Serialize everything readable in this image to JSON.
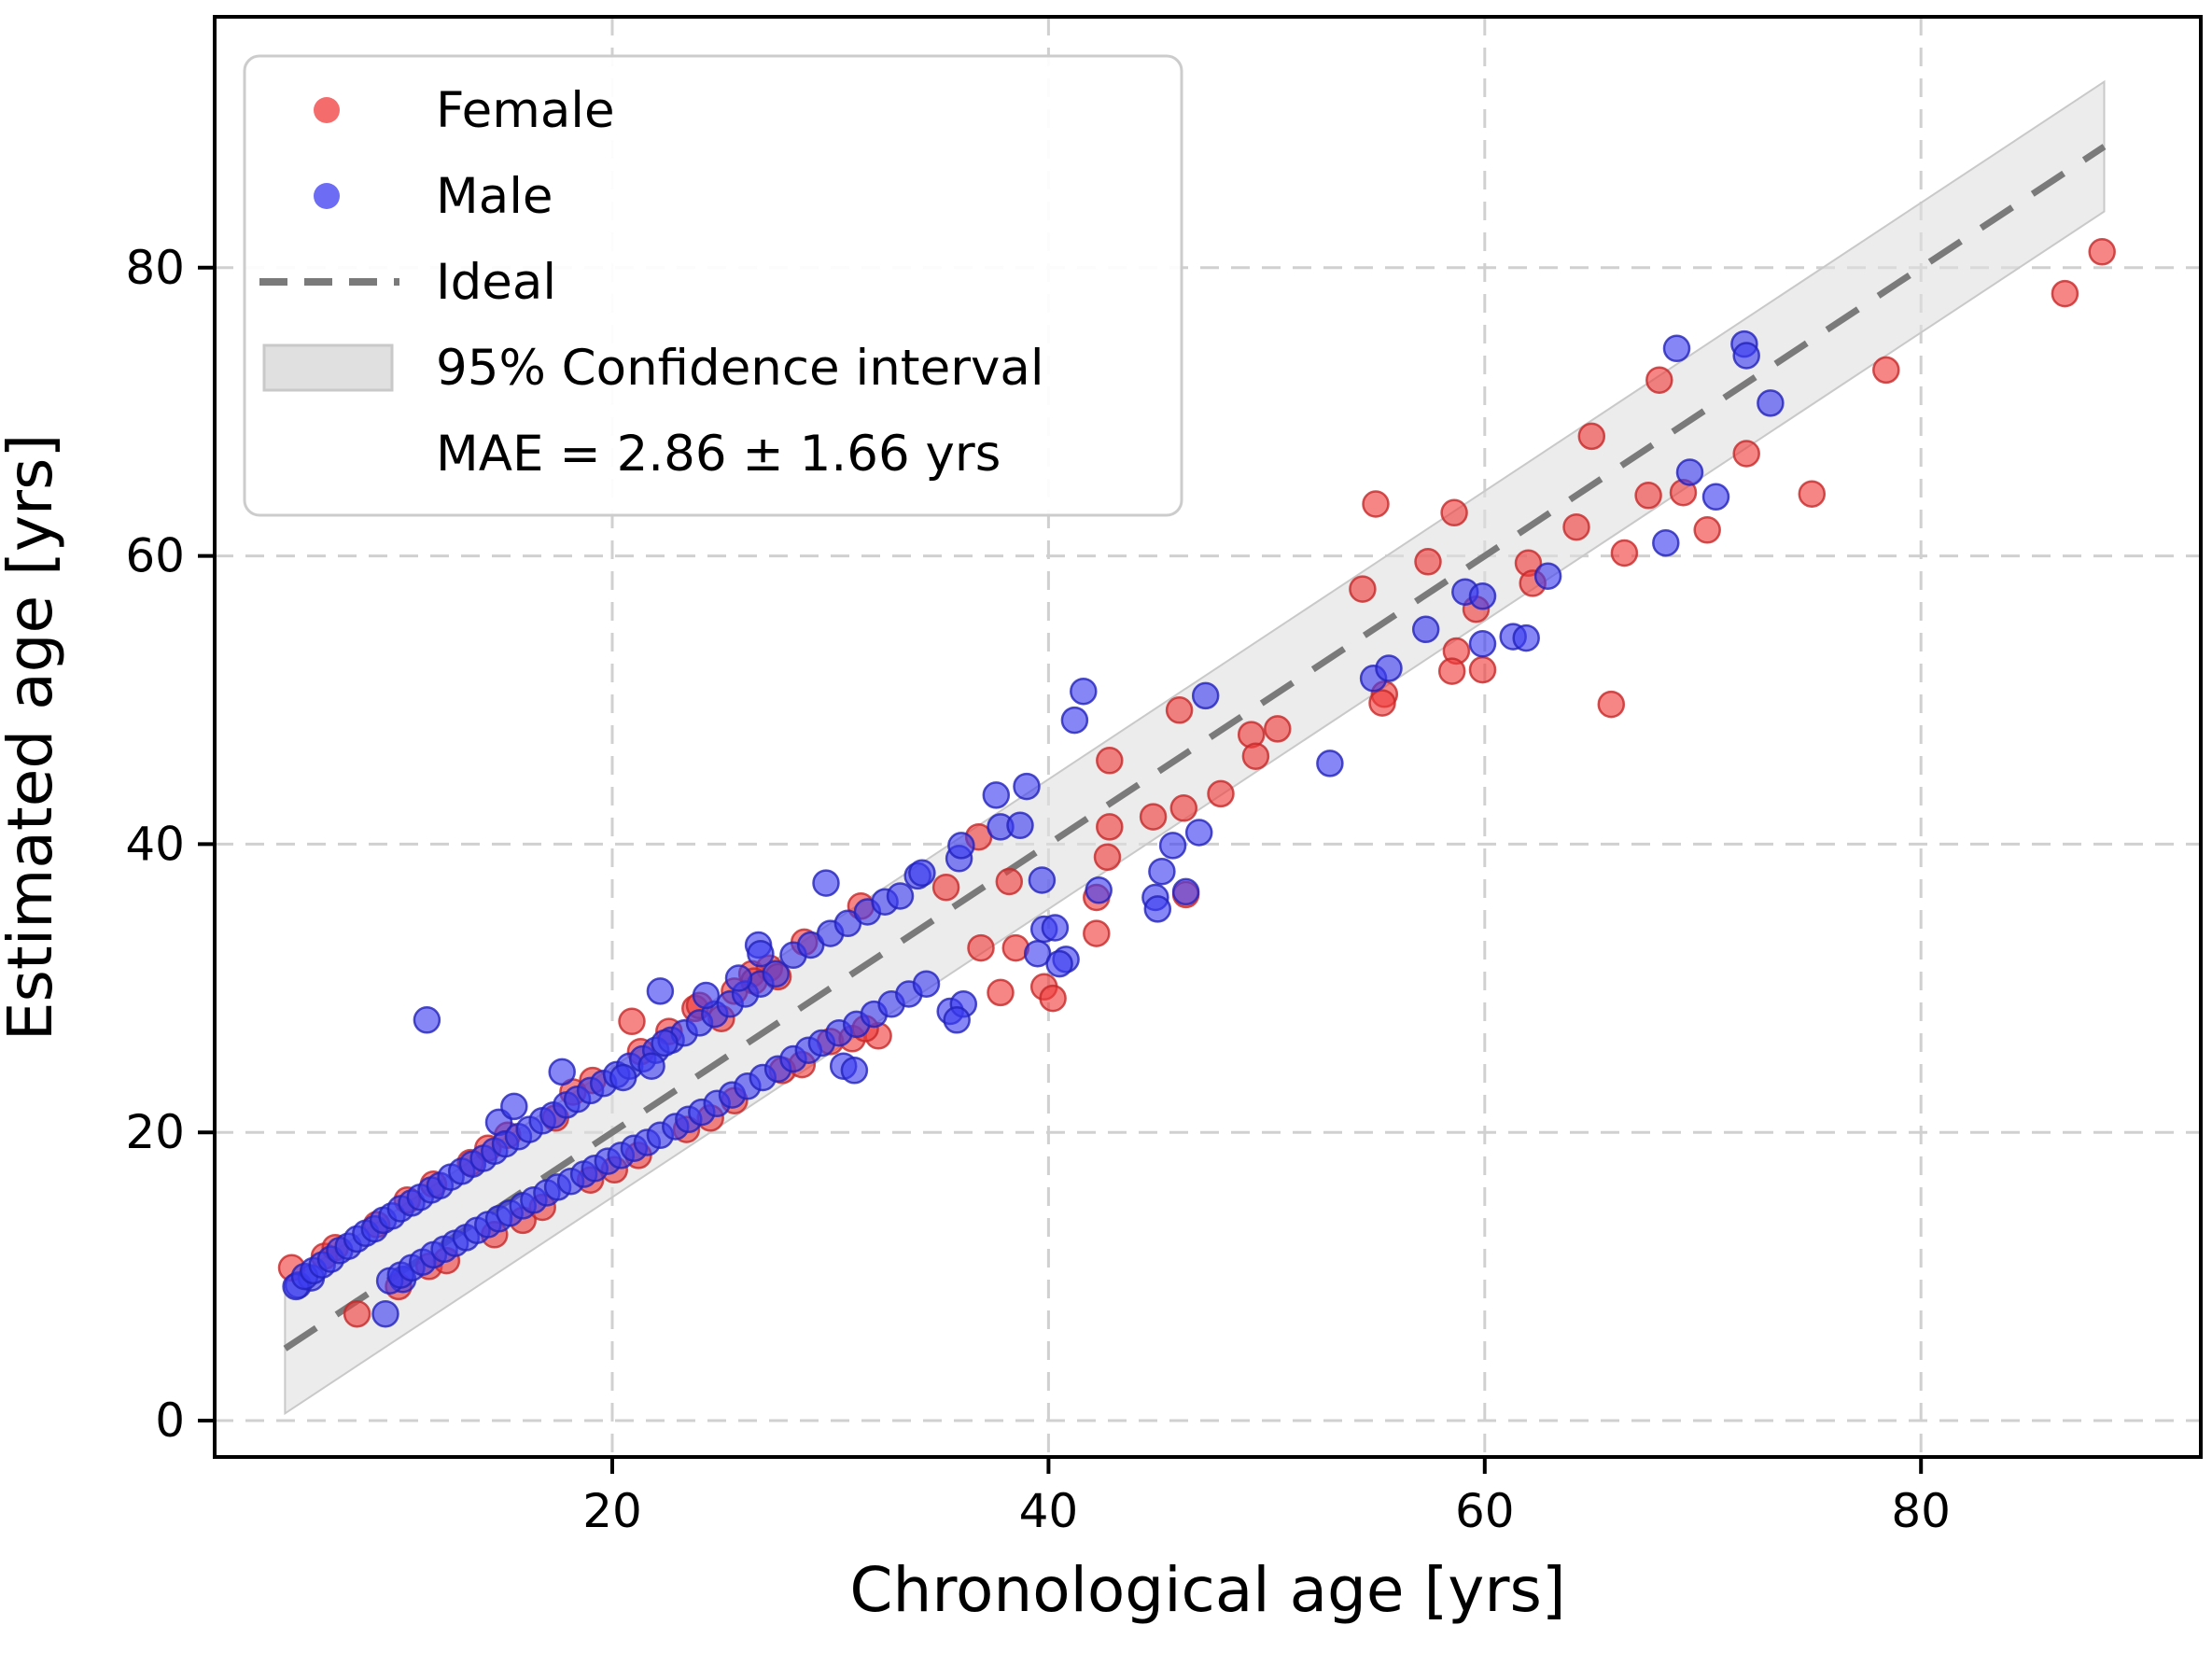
{
  "axes": {
    "xlabel": "Chronological age [yrs]",
    "ylabel": "Estimated age [yrs]",
    "xticks": [
      20,
      40,
      60,
      80
    ],
    "yticks": [
      0,
      20,
      40,
      60,
      80
    ]
  },
  "legend": {
    "items": [
      {
        "label": "Female",
        "marker": "dot"
      },
      {
        "label": "Male",
        "marker": "dot"
      },
      {
        "label": "Ideal",
        "marker": "dash"
      },
      {
        "label": "95% Confidence interval",
        "marker": "band"
      },
      {
        "label": "MAE = 2.86 ± 1.66 yrs",
        "marker": "none"
      }
    ]
  },
  "chart_data": {
    "type": "scatter",
    "title": "",
    "xlabel": "Chronological age [yrs]",
    "ylabel": "Estimated age [yrs]",
    "xlim": [
      1.7,
      93.2
    ],
    "ylim": [
      -2.6,
      96.8
    ],
    "grid": true,
    "legend_position": "upper left",
    "colors": {
      "female_fill": "#f03b3b",
      "female_edge": "#c62828",
      "male_fill": "#3b3bf0",
      "male_edge": "#2222bb",
      "ideal_line": "#7a7a7a",
      "band_fill": "#e0e0e0",
      "band_edge": "#c9c9c9",
      "grid": "#d0d0d0"
    },
    "ideal_line": {
      "label": "Ideal",
      "x_start": 5.0,
      "y_start": 5.0,
      "x_end": 88.4,
      "y_end": 88.4
    },
    "confidence_band": {
      "label": "95% Confidence interval",
      "center": "ideal",
      "half_width_yrs": 4.5,
      "x_start": 5.0,
      "x_end": 88.4
    },
    "mae_yrs": 2.86,
    "mae_std_yrs": 1.66,
    "series": [
      {
        "name": "Female",
        "color": "#f03b3b",
        "points": [
          [
            5.3,
            10.6
          ],
          [
            8.3,
            7.4
          ],
          [
            6.8,
            11.4
          ],
          [
            7.3,
            12.0
          ],
          [
            9.2,
            13.6
          ],
          [
            10.6,
            15.3
          ],
          [
            11.8,
            16.4
          ],
          [
            13.5,
            17.9
          ],
          [
            14.3,
            18.9
          ],
          [
            15.2,
            19.8
          ],
          [
            17.4,
            21.0
          ],
          [
            18.2,
            22.8
          ],
          [
            19.1,
            23.6
          ],
          [
            20.9,
            27.7
          ],
          [
            21.3,
            25.6
          ],
          [
            22.6,
            27.0
          ],
          [
            23.8,
            28.6
          ],
          [
            25.6,
            29.8
          ],
          [
            26.4,
            31.0
          ],
          [
            27.2,
            31.4
          ],
          [
            28.8,
            33.2
          ],
          [
            10.2,
            9.3
          ],
          [
            11.6,
            10.7
          ],
          [
            12.4,
            11.1
          ],
          [
            14.6,
            12.9
          ],
          [
            15.9,
            13.9
          ],
          [
            16.8,
            14.8
          ],
          [
            19.0,
            16.7
          ],
          [
            20.1,
            17.4
          ],
          [
            21.2,
            18.4
          ],
          [
            23.4,
            20.2
          ],
          [
            24.5,
            21.0
          ],
          [
            25.6,
            22.2
          ],
          [
            27.8,
            24.3
          ],
          [
            28.7,
            24.7
          ],
          [
            30.0,
            26.3
          ],
          [
            31.0,
            26.5
          ],
          [
            32.2,
            26.7
          ],
          [
            24.0,
            28.8
          ],
          [
            25.0,
            27.9
          ],
          [
            26.5,
            30.5
          ],
          [
            27.6,
            30.8
          ],
          [
            31.4,
            35.7
          ],
          [
            31.6,
            27.2
          ],
          [
            35.3,
            37.0
          ],
          [
            36.8,
            40.5
          ],
          [
            38.2,
            37.4
          ],
          [
            36.9,
            32.8
          ],
          [
            38.5,
            32.8
          ],
          [
            37.8,
            29.7
          ],
          [
            39.8,
            30.1
          ],
          [
            40.2,
            29.3
          ],
          [
            42.2,
            33.8
          ],
          [
            42.2,
            36.3
          ],
          [
            42.7,
            39.1
          ],
          [
            42.8,
            41.2
          ],
          [
            42.8,
            45.8
          ],
          [
            44.8,
            41.9
          ],
          [
            46.2,
            42.5
          ],
          [
            46.3,
            36.5
          ],
          [
            47.9,
            43.5
          ],
          [
            46.0,
            49.3
          ],
          [
            49.3,
            47.6
          ],
          [
            50.5,
            48.0
          ],
          [
            49.5,
            46.1
          ],
          [
            55.0,
            63.6
          ],
          [
            58.6,
            63.0
          ],
          [
            57.4,
            59.6
          ],
          [
            54.4,
            57.7
          ],
          [
            59.6,
            56.3
          ],
          [
            58.7,
            53.4
          ],
          [
            58.5,
            52.0
          ],
          [
            59.9,
            52.1
          ],
          [
            55.4,
            50.4
          ],
          [
            55.3,
            49.8
          ],
          [
            62.0,
            59.5
          ],
          [
            62.2,
            58.1
          ],
          [
            64.2,
            62.0
          ],
          [
            66.4,
            60.2
          ],
          [
            64.9,
            68.3
          ],
          [
            68.0,
            72.2
          ],
          [
            67.5,
            64.2
          ],
          [
            69.1,
            64.4
          ],
          [
            70.2,
            61.8
          ],
          [
            72.0,
            67.1
          ],
          [
            75.0,
            64.3
          ],
          [
            65.8,
            49.7
          ],
          [
            78.4,
            72.9
          ],
          [
            86.6,
            78.2
          ],
          [
            88.3,
            81.1
          ]
        ]
      },
      {
        "name": "Male",
        "color": "#3b3bf0",
        "points": [
          [
            5.6,
            9.4
          ],
          [
            6.2,
            9.9
          ],
          [
            9.6,
            7.4
          ],
          [
            10.4,
            9.8
          ],
          [
            11.5,
            27.8
          ],
          [
            14.8,
            20.7
          ],
          [
            15.5,
            21.8
          ],
          [
            17.7,
            24.2
          ],
          [
            5.5,
            9.3
          ],
          [
            5.9,
            10.0
          ],
          [
            6.3,
            10.4
          ],
          [
            6.7,
            10.8
          ],
          [
            7.1,
            11.2
          ],
          [
            7.5,
            11.8
          ],
          [
            7.9,
            12.1
          ],
          [
            8.3,
            12.6
          ],
          [
            8.7,
            13.0
          ],
          [
            9.1,
            13.3
          ],
          [
            9.5,
            13.9
          ],
          [
            9.9,
            14.2
          ],
          [
            10.3,
            14.7
          ],
          [
            10.8,
            15.1
          ],
          [
            11.2,
            15.5
          ],
          [
            11.7,
            16.0
          ],
          [
            12.1,
            16.3
          ],
          [
            12.6,
            16.9
          ],
          [
            13.1,
            17.3
          ],
          [
            13.6,
            17.8
          ],
          [
            14.1,
            18.2
          ],
          [
            14.6,
            18.7
          ],
          [
            15.1,
            19.2
          ],
          [
            15.7,
            19.7
          ],
          [
            16.2,
            20.2
          ],
          [
            16.8,
            20.8
          ],
          [
            17.3,
            21.2
          ],
          [
            17.9,
            21.9
          ],
          [
            18.4,
            22.3
          ],
          [
            19.0,
            22.9
          ],
          [
            19.6,
            23.4
          ],
          [
            20.2,
            24.0
          ],
          [
            20.8,
            24.6
          ],
          [
            21.4,
            25.1
          ],
          [
            22.0,
            25.7
          ],
          [
            22.7,
            26.4
          ],
          [
            23.3,
            26.9
          ],
          [
            24.0,
            27.6
          ],
          [
            24.7,
            28.2
          ],
          [
            25.4,
            28.9
          ],
          [
            26.1,
            29.6
          ],
          [
            26.8,
            30.3
          ],
          [
            27.5,
            31.0
          ],
          [
            20.5,
            23.8
          ],
          [
            21.8,
            24.6
          ],
          [
            22.4,
            26.2
          ],
          [
            24.3,
            29.5
          ],
          [
            25.8,
            30.7
          ],
          [
            28.3,
            32.3
          ],
          [
            29.1,
            33.0
          ],
          [
            30.0,
            33.8
          ],
          [
            30.8,
            34.5
          ],
          [
            31.7,
            35.3
          ],
          [
            32.5,
            36.0
          ],
          [
            9.8,
            9.7
          ],
          [
            10.3,
            10.1
          ],
          [
            10.8,
            10.6
          ],
          [
            11.3,
            11.0
          ],
          [
            11.8,
            11.5
          ],
          [
            12.3,
            11.9
          ],
          [
            12.8,
            12.3
          ],
          [
            13.3,
            12.7
          ],
          [
            13.8,
            13.2
          ],
          [
            14.3,
            13.6
          ],
          [
            14.8,
            14.0
          ],
          [
            15.3,
            14.4
          ],
          [
            15.9,
            14.9
          ],
          [
            16.4,
            15.3
          ],
          [
            17.0,
            15.8
          ],
          [
            17.5,
            16.2
          ],
          [
            18.1,
            16.6
          ],
          [
            18.7,
            17.1
          ],
          [
            19.2,
            17.5
          ],
          [
            19.8,
            18.0
          ],
          [
            20.4,
            18.4
          ],
          [
            21.0,
            18.9
          ],
          [
            21.6,
            19.3
          ],
          [
            22.2,
            19.8
          ],
          [
            22.9,
            20.4
          ],
          [
            23.5,
            20.9
          ],
          [
            24.1,
            21.4
          ],
          [
            24.8,
            22.0
          ],
          [
            25.5,
            22.6
          ],
          [
            26.2,
            23.2
          ],
          [
            26.9,
            23.8
          ],
          [
            27.6,
            24.4
          ],
          [
            28.3,
            25.1
          ],
          [
            29.0,
            25.7
          ],
          [
            29.6,
            26.2
          ],
          [
            30.4,
            26.9
          ],
          [
            31.2,
            27.5
          ],
          [
            32.0,
            28.2
          ],
          [
            32.8,
            28.9
          ],
          [
            33.6,
            29.6
          ],
          [
            34.4,
            30.3
          ],
          [
            30.6,
            24.6
          ],
          [
            31.1,
            24.3
          ],
          [
            22.2,
            29.8
          ],
          [
            26.7,
            33.0
          ],
          [
            26.8,
            32.4
          ],
          [
            29.8,
            37.3
          ],
          [
            33.2,
            36.4
          ],
          [
            34.0,
            37.8
          ],
          [
            35.9,
            39.0
          ],
          [
            36.0,
            39.9
          ],
          [
            34.2,
            38.0
          ],
          [
            35.5,
            28.4
          ],
          [
            36.1,
            28.9
          ],
          [
            35.8,
            27.8
          ],
          [
            37.8,
            41.2
          ],
          [
            38.7,
            41.3
          ],
          [
            37.6,
            43.4
          ],
          [
            39.0,
            44.0
          ],
          [
            39.5,
            32.4
          ],
          [
            40.8,
            32.0
          ],
          [
            39.7,
            37.5
          ],
          [
            39.8,
            34.1
          ],
          [
            40.3,
            34.2
          ],
          [
            40.5,
            31.7
          ],
          [
            41.2,
            48.6
          ],
          [
            41.6,
            50.6
          ],
          [
            42.3,
            36.8
          ],
          [
            44.9,
            36.3
          ],
          [
            45.0,
            35.5
          ],
          [
            45.2,
            38.1
          ],
          [
            45.7,
            39.9
          ],
          [
            46.9,
            40.8
          ],
          [
            46.3,
            36.7
          ],
          [
            47.2,
            50.3
          ],
          [
            52.9,
            45.6
          ],
          [
            54.9,
            51.5
          ],
          [
            55.6,
            52.2
          ],
          [
            57.3,
            54.9
          ],
          [
            59.1,
            57.5
          ],
          [
            59.9,
            57.2
          ],
          [
            59.9,
            53.9
          ],
          [
            61.3,
            54.4
          ],
          [
            61.9,
            54.3
          ],
          [
            62.9,
            58.6
          ],
          [
            68.3,
            60.9
          ],
          [
            69.4,
            65.8
          ],
          [
            70.6,
            64.1
          ],
          [
            68.8,
            74.4
          ],
          [
            71.9,
            74.7
          ],
          [
            72.0,
            73.9
          ],
          [
            73.1,
            70.6
          ]
        ]
      }
    ]
  }
}
